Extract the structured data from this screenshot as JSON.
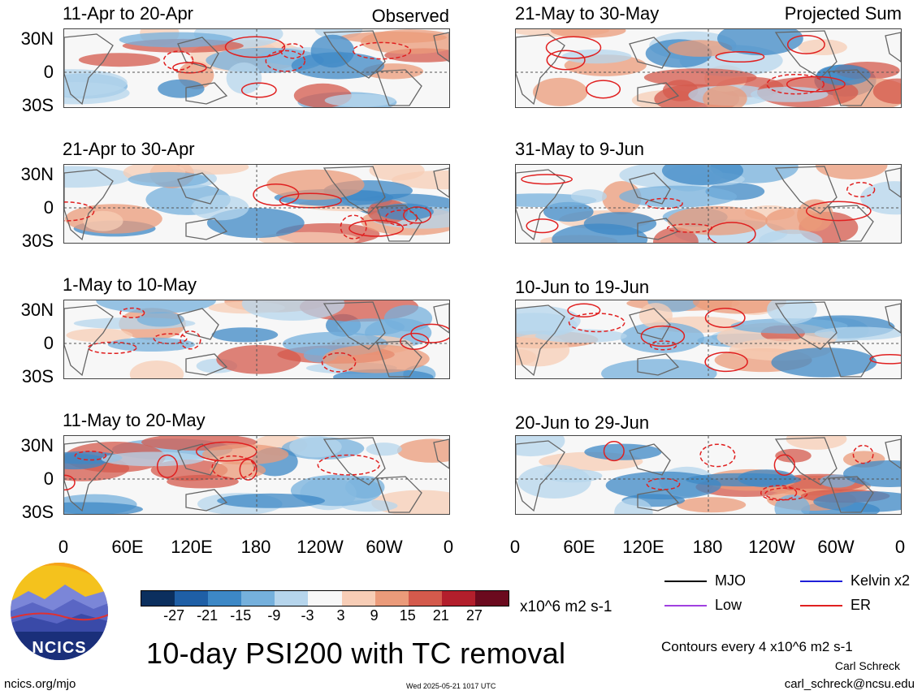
{
  "panels": [
    {
      "id": "p1",
      "title": "11-Apr to 20-Apr",
      "label": "Observed",
      "seed": 1
    },
    {
      "id": "p2",
      "title": "21-Apr to 30-Apr",
      "label": "",
      "seed": 2
    },
    {
      "id": "p3",
      "title": "1-May to 10-May",
      "label": "",
      "seed": 3
    },
    {
      "id": "p4",
      "title": "11-May to 20-May",
      "label": "",
      "seed": 4
    },
    {
      "id": "p5",
      "title": "21-May to 30-May",
      "label": "Projected Sum",
      "seed": 5
    },
    {
      "id": "p6",
      "title": "31-May to 9-Jun",
      "label": "",
      "seed": 6
    },
    {
      "id": "p7",
      "title": "10-Jun to 19-Jun",
      "label": "",
      "seed": 7
    },
    {
      "id": "p8",
      "title": "20-Jun to 29-Jun",
      "label": "",
      "seed": 8
    }
  ],
  "y_ticks": [
    "30N",
    "0",
    "30S"
  ],
  "x_ticks": [
    "0",
    "60E",
    "120E",
    "180",
    "120W",
    "60W",
    "0"
  ],
  "colorbar": {
    "ticks": [
      "-27",
      "-21",
      "-15",
      "-9",
      "-3",
      "3",
      "9",
      "15",
      "21",
      "27"
    ],
    "colors": [
      "#0b2f5e",
      "#1f5fa6",
      "#3d88c6",
      "#75b0dc",
      "#b6d5ec",
      "#f7f7f7",
      "#f7cdb6",
      "#eb9b7a",
      "#d45a4c",
      "#b31f2c",
      "#6b0a1e"
    ],
    "units": "x10^6 m2 s-1"
  },
  "title": "10-day PSI200 with TC removal",
  "legend": [
    {
      "label": "MJO",
      "color": "#000000"
    },
    {
      "label": "Kelvin x2",
      "color": "#1f1fd8"
    },
    {
      "label": "Low",
      "color": "#a040e0"
    },
    {
      "label": "ER",
      "color": "#e02020"
    }
  ],
  "contour_note": "Contours every 4 x10^6 m2 s-1",
  "author": "Carl Schreck",
  "email": "carl_schreck@ncsu.edu",
  "site": "ncics.org/mjo",
  "timestamp": "Wed 2025-05-21 1017 UTC",
  "logo_text": "NCICS",
  "colors": {
    "zero_line": "#555555",
    "continent": "#666666",
    "er_contour": "#e02020"
  }
}
